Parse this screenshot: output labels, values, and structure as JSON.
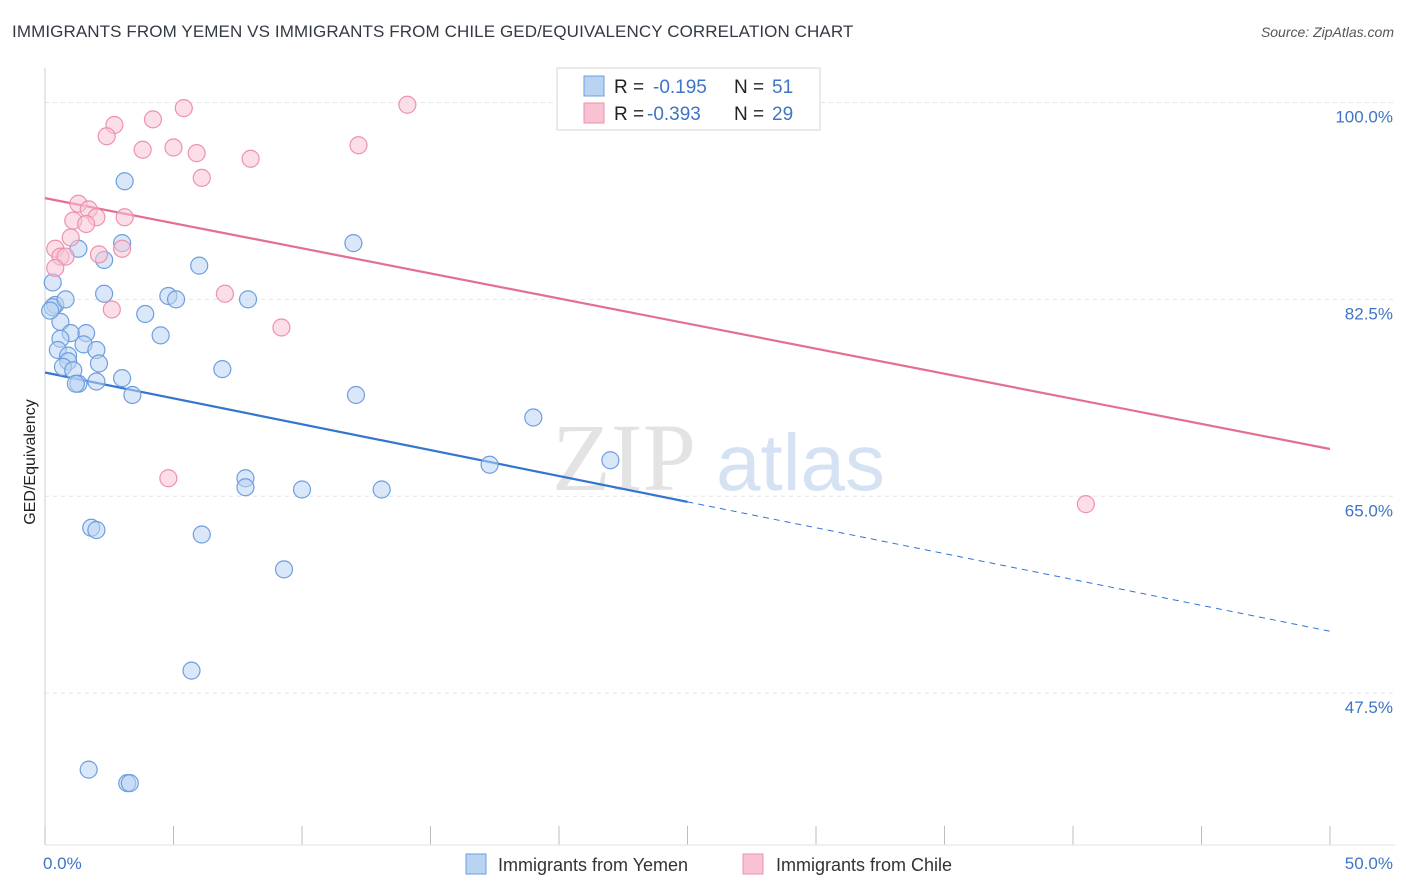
{
  "title": "IMMIGRANTS FROM YEMEN VS IMMIGRANTS FROM CHILE GED/EQUIVALENCY CORRELATION CHART",
  "source": "Source: ZipAtlas.com",
  "colors": {
    "yemen_fill": "#b9d3f3",
    "yemen_stroke": "#6d9ee0",
    "yemen_line": "#3375d0",
    "chile_fill": "#f7c3d3",
    "chile_stroke": "#ec92ad",
    "chile_line": "#e3708f",
    "tick": "#3f74c6",
    "grid": "#e6e6e6"
  },
  "chart_data": {
    "type": "scatter",
    "title": "IMMIGRANTS FROM YEMEN VS IMMIGRANTS FROM CHILE GED/EQUIVALENCY CORRELATION CHART",
    "xlabel": "",
    "ylabel": "GED/Equivalency",
    "xlim": [
      0,
      50
    ],
    "ylim": [
      34.0,
      102.0
    ],
    "x_tick_labels": [
      "0.0%",
      "50.0%"
    ],
    "y_ticks": [
      47.5,
      65.0,
      82.5,
      100.0
    ],
    "y_tick_labels": [
      "47.5%",
      "65.0%",
      "82.5%",
      "100.0%"
    ],
    "grid": true,
    "watermark": {
      "zip": "ZIP",
      "atlas": "atlas"
    },
    "legend": {
      "placement": "top-center",
      "entries": [
        {
          "series": "Immigrants from Yemen",
          "r_label": "R =",
          "r_value": "-0.195",
          "n_label": "N =",
          "n_value": "51"
        },
        {
          "series": "Immigrants from Chile",
          "r_label": "R =",
          "r_value": "-0.393",
          "n_label": "N =",
          "n_value": "29"
        }
      ]
    },
    "series": [
      {
        "name": "Immigrants from Yemen",
        "trend": {
          "x0": 0.0,
          "y0": 76.0,
          "x1": 25.0,
          "y1": 64.5,
          "dash_to_x": 50.0,
          "dash_to_y": 53.0
        },
        "points": [
          [
            3.1,
            93.0
          ],
          [
            0.3,
            84.0
          ],
          [
            0.4,
            82.0
          ],
          [
            0.3,
            81.8
          ],
          [
            0.8,
            82.5
          ],
          [
            0.6,
            80.5
          ],
          [
            1.6,
            79.5
          ],
          [
            1.0,
            79.5
          ],
          [
            0.6,
            79.0
          ],
          [
            0.5,
            78.0
          ],
          [
            1.5,
            78.5
          ],
          [
            2.0,
            78.0
          ],
          [
            0.9,
            77.5
          ],
          [
            0.9,
            77.0
          ],
          [
            0.7,
            76.5
          ],
          [
            1.1,
            76.2
          ],
          [
            2.1,
            76.8
          ],
          [
            1.3,
            75.0
          ],
          [
            1.2,
            75.0
          ],
          [
            2.0,
            75.2
          ],
          [
            3.0,
            75.5
          ],
          [
            3.4,
            74.0
          ],
          [
            1.3,
            87.0
          ],
          [
            3.0,
            87.5
          ],
          [
            2.3,
            86.0
          ],
          [
            6.0,
            85.5
          ],
          [
            2.3,
            83.0
          ],
          [
            4.8,
            82.8
          ],
          [
            5.1,
            82.5
          ],
          [
            7.9,
            82.5
          ],
          [
            3.9,
            81.2
          ],
          [
            4.5,
            79.3
          ],
          [
            6.9,
            76.3
          ],
          [
            12.0,
            87.5
          ],
          [
            12.1,
            74.0
          ],
          [
            19.0,
            72.0
          ],
          [
            17.3,
            67.8
          ],
          [
            22.0,
            68.2
          ],
          [
            7.8,
            66.6
          ],
          [
            7.8,
            65.8
          ],
          [
            10.0,
            65.6
          ],
          [
            13.1,
            65.6
          ],
          [
            1.8,
            62.2
          ],
          [
            2.0,
            62.0
          ],
          [
            6.1,
            61.6
          ],
          [
            9.3,
            58.5
          ],
          [
            5.7,
            49.5
          ],
          [
            1.7,
            40.7
          ],
          [
            3.2,
            39.5
          ],
          [
            3.3,
            39.5
          ],
          [
            0.2,
            81.5
          ]
        ]
      },
      {
        "name": "Immigrants from Chile",
        "trend": {
          "x0": 0.0,
          "y0": 91.5,
          "x1": 50.0,
          "y1": 69.2
        },
        "points": [
          [
            5.4,
            99.5
          ],
          [
            14.1,
            99.8
          ],
          [
            4.2,
            98.5
          ],
          [
            2.7,
            98.0
          ],
          [
            2.4,
            97.0
          ],
          [
            12.2,
            96.2
          ],
          [
            3.8,
            95.8
          ],
          [
            5.0,
            96.0
          ],
          [
            5.9,
            95.5
          ],
          [
            8.0,
            95.0
          ],
          [
            6.1,
            93.3
          ],
          [
            1.3,
            91.0
          ],
          [
            1.7,
            90.5
          ],
          [
            1.1,
            89.5
          ],
          [
            2.0,
            89.8
          ],
          [
            3.1,
            89.8
          ],
          [
            1.6,
            89.2
          ],
          [
            1.0,
            88.0
          ],
          [
            0.4,
            87.0
          ],
          [
            0.6,
            86.3
          ],
          [
            0.8,
            86.3
          ],
          [
            2.1,
            86.5
          ],
          [
            3.0,
            87.0
          ],
          [
            0.4,
            85.3
          ],
          [
            7.0,
            83.0
          ],
          [
            2.6,
            81.6
          ],
          [
            9.2,
            80.0
          ],
          [
            4.8,
            66.6
          ],
          [
            40.5,
            64.3
          ]
        ]
      }
    ]
  }
}
